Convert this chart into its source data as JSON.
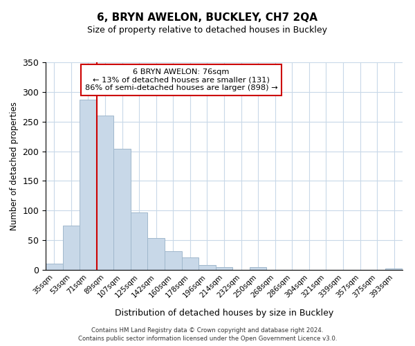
{
  "title": "6, BRYN AWELON, BUCKLEY, CH7 2QA",
  "subtitle": "Size of property relative to detached houses in Buckley",
  "xlabel": "Distribution of detached houses by size in Buckley",
  "ylabel": "Number of detached properties",
  "bar_labels": [
    "35sqm",
    "53sqm",
    "71sqm",
    "89sqm",
    "107sqm",
    "125sqm",
    "142sqm",
    "160sqm",
    "178sqm",
    "196sqm",
    "214sqm",
    "232sqm",
    "250sqm",
    "268sqm",
    "286sqm",
    "304sqm",
    "321sqm",
    "339sqm",
    "357sqm",
    "375sqm",
    "393sqm"
  ],
  "bar_values": [
    10,
    75,
    287,
    260,
    204,
    97,
    54,
    31,
    21,
    8,
    5,
    0,
    5,
    0,
    0,
    0,
    0,
    0,
    0,
    0,
    2
  ],
  "bar_color": "#c8d8e8",
  "bar_edge_color": "#a0b8cc",
  "vline_x_index": 2,
  "vline_color": "#cc0000",
  "ylim": [
    0,
    350
  ],
  "yticks": [
    0,
    50,
    100,
    150,
    200,
    250,
    300,
    350
  ],
  "annotation_title": "6 BRYN AWELON: 76sqm",
  "annotation_line1": "← 13% of detached houses are smaller (131)",
  "annotation_line2": "86% of semi-detached houses are larger (898) →",
  "footer_line1": "Contains HM Land Registry data © Crown copyright and database right 2024.",
  "footer_line2": "Contains public sector information licensed under the Open Government Licence v3.0.",
  "background_color": "#ffffff",
  "grid_color": "#c8d8e8"
}
